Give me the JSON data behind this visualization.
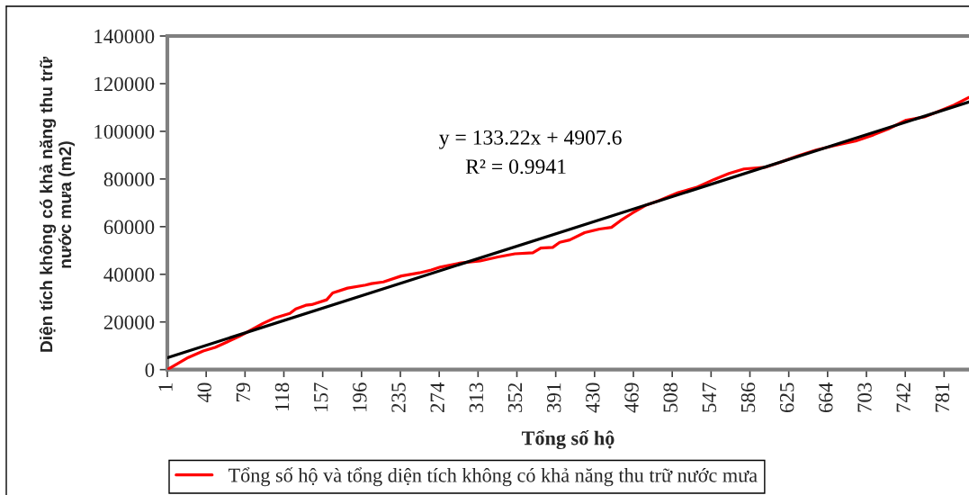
{
  "chart_data": {
    "type": "line",
    "xlabel": "Tổng số hộ",
    "ylabel": "Diện tích không có khả năng thu trữ\nnước mưa (m2)",
    "annotations": [
      "y = 133.22x + 4907.6",
      "R² = 0.9941"
    ],
    "xlim": [
      1,
      806
    ],
    "xticks": [
      1,
      40,
      79,
      118,
      157,
      196,
      235,
      274,
      313,
      352,
      391,
      430,
      469,
      508,
      547,
      586,
      625,
      664,
      703,
      742,
      781
    ],
    "ylim": [
      0,
      140000
    ],
    "yticks": [
      0,
      20000,
      40000,
      60000,
      80000,
      100000,
      120000,
      140000
    ],
    "grid": false,
    "legend": "bottom",
    "line_style": "solid",
    "series": [
      {
        "name": "Tổng số hộ và tổng diện tích không có khả năng thu trữ nước mưa",
        "color": "#ff0000",
        "x": [
          1,
          10,
          22,
          37,
          49,
          61,
          73,
          85,
          97,
          109,
          124,
          130,
          140,
          146,
          161,
          167,
          182,
          200,
          206,
          218,
          236,
          254,
          266,
          275,
          296,
          315,
          333,
          350,
          368,
          376,
          388,
          395,
          405,
          420,
          435,
          447,
          456,
          468,
          481,
          495,
          514,
          532,
          550,
          565,
          580,
          601,
          616,
          634,
          653,
          671,
          692,
          710,
          725,
          743,
          761,
          776,
          791,
          803,
          806
        ],
        "values": [
          0,
          2200,
          5100,
          7800,
          9300,
          11600,
          13900,
          16600,
          19400,
          21700,
          23600,
          25500,
          27000,
          27300,
          29300,
          32200,
          34200,
          35500,
          36100,
          36800,
          39300,
          40600,
          41800,
          43000,
          44800,
          45600,
          47300,
          48600,
          49000,
          51000,
          51300,
          53400,
          54400,
          57500,
          59000,
          59700,
          62500,
          65700,
          68900,
          71000,
          74300,
          76400,
          79800,
          82300,
          84200,
          84900,
          86900,
          89700,
          92200,
          94000,
          95900,
          98500,
          101000,
          104700,
          106000,
          108500,
          111000,
          113600,
          114200
        ]
      },
      {
        "type": "line",
        "color": "#000000",
        "x": [
          1,
          806
        ],
        "values": [
          5000,
          112300
        ]
      }
    ]
  }
}
